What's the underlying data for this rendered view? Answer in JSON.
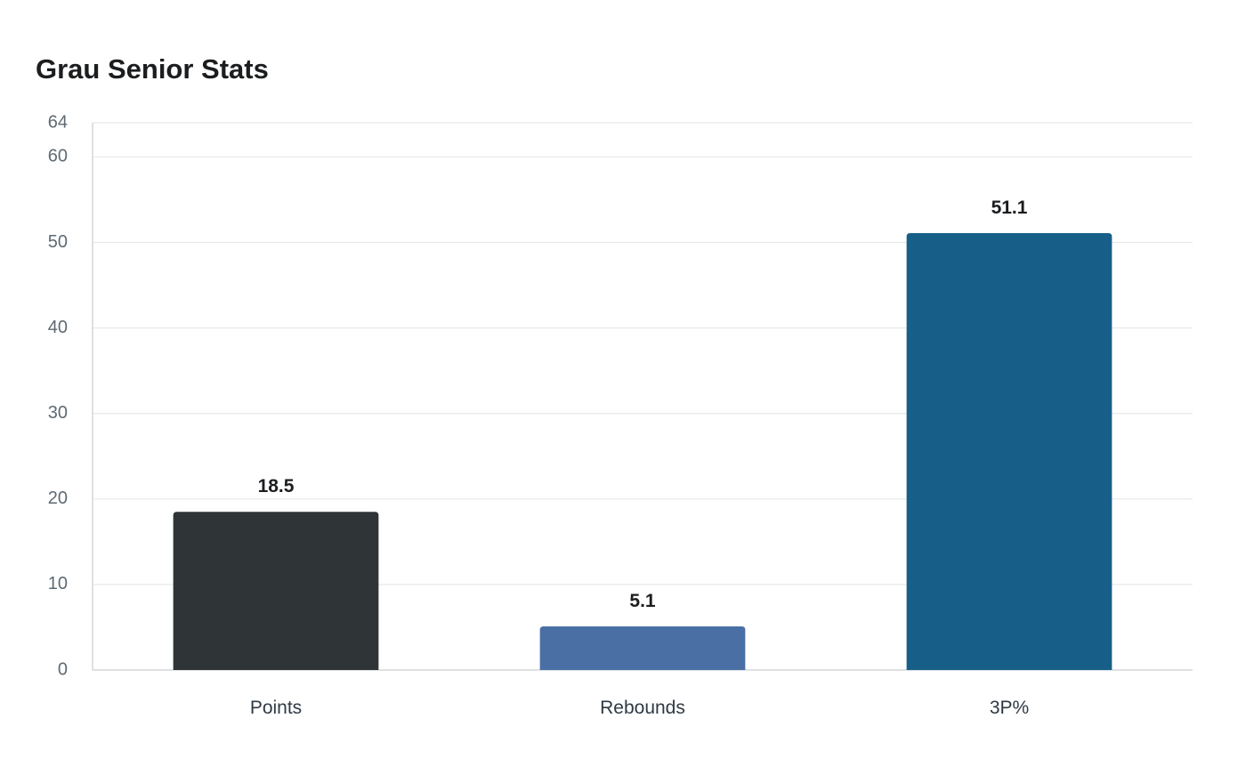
{
  "chart_data": {
    "type": "bar",
    "title": "Grau Senior Stats",
    "categories": [
      "Points",
      "Rebounds",
      "3P%"
    ],
    "values": [
      18.5,
      5.1,
      51.1
    ],
    "data_labels": [
      "18.5",
      "5.1",
      "51.1"
    ],
    "colors": [
      "#2f3537",
      "#4a6fa5",
      "#175f88"
    ],
    "ylim": [
      0,
      64
    ],
    "yticks": [
      0,
      10,
      20,
      30,
      40,
      50,
      60,
      64
    ],
    "xlabel": "",
    "ylabel": "",
    "grid": true,
    "legend": "none"
  }
}
